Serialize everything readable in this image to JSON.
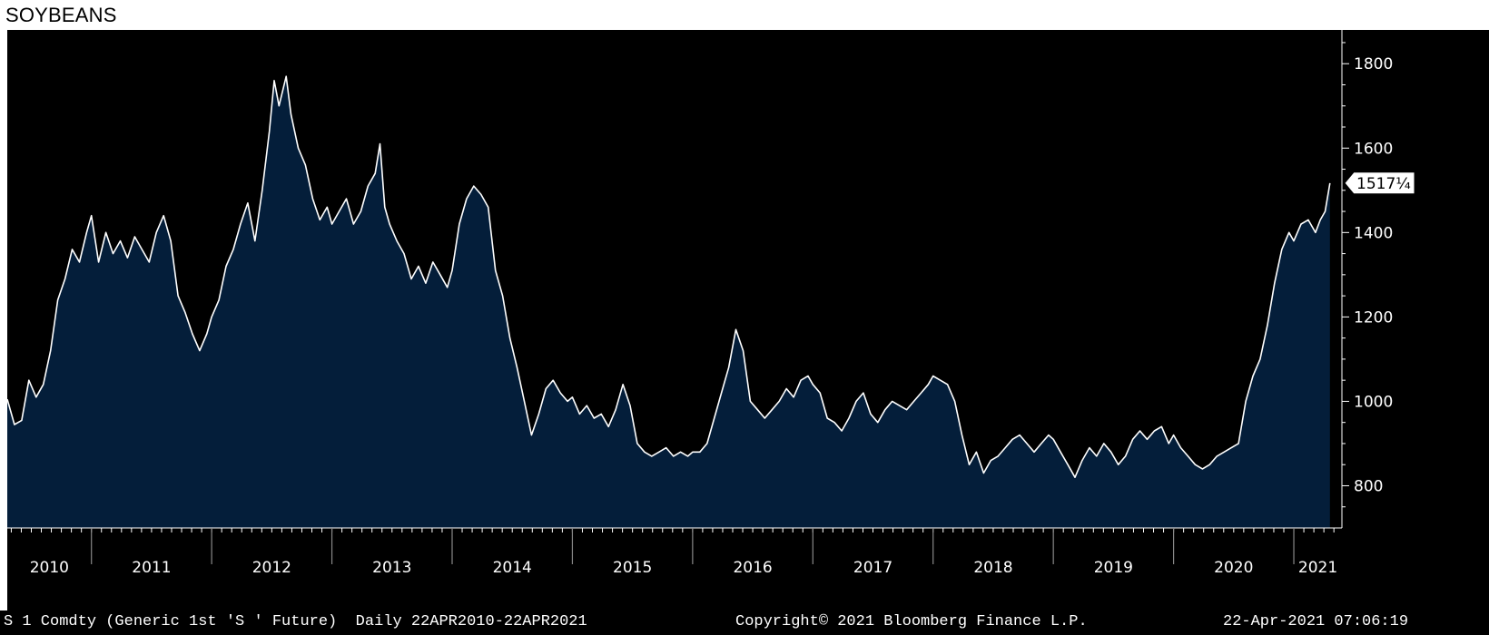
{
  "title": "SOYBEANS",
  "footer": {
    "left": "S 1 Comdty (Generic 1st 'S ' Future)  Daily 22APR2010-22APR2021",
    "center": "Copyright© 2021 Bloomberg Finance L.P.",
    "right": "22-Apr-2021 07:06:19"
  },
  "colors": {
    "background": "#000000",
    "area_fill": "#041e3a",
    "line": "#ffffff",
    "axis": "#ffffff",
    "text": "#ffffff"
  },
  "chart_data": {
    "type": "area",
    "title": "SOYBEANS",
    "xlabel": "",
    "ylabel": "",
    "ylim": [
      700,
      1880
    ],
    "xlim": [
      2010.3,
      2021.4
    ],
    "grid": false,
    "y_ticks": [
      800,
      1000,
      1200,
      1400,
      1600,
      1800
    ],
    "x_ticks": [
      "2010",
      "2011",
      "2012",
      "2013",
      "2014",
      "2015",
      "2016",
      "2017",
      "2018",
      "2019",
      "2020",
      "2021"
    ],
    "last_value_label": "1517¼",
    "last_value": 1517.25,
    "series": [
      {
        "values": [
          [
            2010.3,
            1005
          ],
          [
            2010.36,
            945
          ],
          [
            2010.42,
            955
          ],
          [
            2010.48,
            1050
          ],
          [
            2010.54,
            1010
          ],
          [
            2010.6,
            1040
          ],
          [
            2010.66,
            1120
          ],
          [
            2010.72,
            1240
          ],
          [
            2010.78,
            1290
          ],
          [
            2010.84,
            1360
          ],
          [
            2010.9,
            1330
          ],
          [
            2010.96,
            1400
          ],
          [
            2011.0,
            1440
          ],
          [
            2011.06,
            1330
          ],
          [
            2011.12,
            1400
          ],
          [
            2011.18,
            1350
          ],
          [
            2011.24,
            1380
          ],
          [
            2011.3,
            1340
          ],
          [
            2011.36,
            1390
          ],
          [
            2011.42,
            1360
          ],
          [
            2011.48,
            1330
          ],
          [
            2011.54,
            1400
          ],
          [
            2011.6,
            1440
          ],
          [
            2011.66,
            1380
          ],
          [
            2011.72,
            1250
          ],
          [
            2011.78,
            1210
          ],
          [
            2011.84,
            1160
          ],
          [
            2011.9,
            1120
          ],
          [
            2011.96,
            1160
          ],
          [
            2012.0,
            1200
          ],
          [
            2012.06,
            1240
          ],
          [
            2012.12,
            1320
          ],
          [
            2012.18,
            1360
          ],
          [
            2012.24,
            1420
          ],
          [
            2012.3,
            1470
          ],
          [
            2012.36,
            1380
          ],
          [
            2012.42,
            1500
          ],
          [
            2012.48,
            1640
          ],
          [
            2012.52,
            1760
          ],
          [
            2012.56,
            1700
          ],
          [
            2012.62,
            1770
          ],
          [
            2012.66,
            1680
          ],
          [
            2012.72,
            1600
          ],
          [
            2012.78,
            1560
          ],
          [
            2012.84,
            1480
          ],
          [
            2012.9,
            1430
          ],
          [
            2012.96,
            1460
          ],
          [
            2013.0,
            1420
          ],
          [
            2013.06,
            1450
          ],
          [
            2013.12,
            1480
          ],
          [
            2013.18,
            1420
          ],
          [
            2013.24,
            1450
          ],
          [
            2013.3,
            1510
          ],
          [
            2013.36,
            1540
          ],
          [
            2013.4,
            1610
          ],
          [
            2013.44,
            1460
          ],
          [
            2013.48,
            1420
          ],
          [
            2013.54,
            1380
          ],
          [
            2013.6,
            1350
          ],
          [
            2013.66,
            1290
          ],
          [
            2013.72,
            1320
          ],
          [
            2013.78,
            1280
          ],
          [
            2013.84,
            1330
          ],
          [
            2013.9,
            1300
          ],
          [
            2013.96,
            1270
          ],
          [
            2014.0,
            1310
          ],
          [
            2014.06,
            1420
          ],
          [
            2014.12,
            1480
          ],
          [
            2014.18,
            1510
          ],
          [
            2014.24,
            1490
          ],
          [
            2014.3,
            1460
          ],
          [
            2014.36,
            1310
          ],
          [
            2014.42,
            1250
          ],
          [
            2014.48,
            1150
          ],
          [
            2014.54,
            1080
          ],
          [
            2014.6,
            1000
          ],
          [
            2014.66,
            920
          ],
          [
            2014.72,
            970
          ],
          [
            2014.78,
            1030
          ],
          [
            2014.84,
            1050
          ],
          [
            2014.9,
            1020
          ],
          [
            2014.96,
            1000
          ],
          [
            2015.0,
            1010
          ],
          [
            2015.06,
            970
          ],
          [
            2015.12,
            990
          ],
          [
            2015.18,
            960
          ],
          [
            2015.24,
            970
          ],
          [
            2015.3,
            940
          ],
          [
            2015.36,
            980
          ],
          [
            2015.42,
            1040
          ],
          [
            2015.48,
            990
          ],
          [
            2015.54,
            900
          ],
          [
            2015.6,
            880
          ],
          [
            2015.66,
            870
          ],
          [
            2015.72,
            880
          ],
          [
            2015.78,
            890
          ],
          [
            2015.84,
            870
          ],
          [
            2015.9,
            880
          ],
          [
            2015.96,
            870
          ],
          [
            2016.0,
            880
          ],
          [
            2016.06,
            880
          ],
          [
            2016.12,
            900
          ],
          [
            2016.18,
            960
          ],
          [
            2016.24,
            1020
          ],
          [
            2016.3,
            1080
          ],
          [
            2016.36,
            1170
          ],
          [
            2016.42,
            1120
          ],
          [
            2016.48,
            1000
          ],
          [
            2016.54,
            980
          ],
          [
            2016.6,
            960
          ],
          [
            2016.66,
            980
          ],
          [
            2016.72,
            1000
          ],
          [
            2016.78,
            1030
          ],
          [
            2016.84,
            1010
          ],
          [
            2016.9,
            1050
          ],
          [
            2016.96,
            1060
          ],
          [
            2017.0,
            1040
          ],
          [
            2017.06,
            1020
          ],
          [
            2017.12,
            960
          ],
          [
            2017.18,
            950
          ],
          [
            2017.24,
            930
          ],
          [
            2017.3,
            960
          ],
          [
            2017.36,
            1000
          ],
          [
            2017.42,
            1020
          ],
          [
            2017.48,
            970
          ],
          [
            2017.54,
            950
          ],
          [
            2017.6,
            980
          ],
          [
            2017.66,
            1000
          ],
          [
            2017.72,
            990
          ],
          [
            2017.78,
            980
          ],
          [
            2017.84,
            1000
          ],
          [
            2017.9,
            1020
          ],
          [
            2017.96,
            1040
          ],
          [
            2018.0,
            1060
          ],
          [
            2018.06,
            1050
          ],
          [
            2018.12,
            1040
          ],
          [
            2018.18,
            1000
          ],
          [
            2018.24,
            920
          ],
          [
            2018.3,
            850
          ],
          [
            2018.36,
            880
          ],
          [
            2018.42,
            830
          ],
          [
            2018.48,
            860
          ],
          [
            2018.54,
            870
          ],
          [
            2018.6,
            890
          ],
          [
            2018.66,
            910
          ],
          [
            2018.72,
            920
          ],
          [
            2018.78,
            900
          ],
          [
            2018.84,
            880
          ],
          [
            2018.9,
            900
          ],
          [
            2018.96,
            920
          ],
          [
            2019.0,
            910
          ],
          [
            2019.06,
            880
          ],
          [
            2019.12,
            850
          ],
          [
            2019.18,
            820
          ],
          [
            2019.24,
            860
          ],
          [
            2019.3,
            890
          ],
          [
            2019.36,
            870
          ],
          [
            2019.42,
            900
          ],
          [
            2019.48,
            880
          ],
          [
            2019.54,
            850
          ],
          [
            2019.6,
            870
          ],
          [
            2019.66,
            910
          ],
          [
            2019.72,
            930
          ],
          [
            2019.78,
            910
          ],
          [
            2019.84,
            930
          ],
          [
            2019.9,
            940
          ],
          [
            2019.96,
            900
          ],
          [
            2020.0,
            920
          ],
          [
            2020.06,
            890
          ],
          [
            2020.12,
            870
          ],
          [
            2020.18,
            850
          ],
          [
            2020.24,
            840
          ],
          [
            2020.3,
            850
          ],
          [
            2020.36,
            870
          ],
          [
            2020.42,
            880
          ],
          [
            2020.48,
            890
          ],
          [
            2020.54,
            900
          ],
          [
            2020.6,
            1000
          ],
          [
            2020.66,
            1060
          ],
          [
            2020.72,
            1100
          ],
          [
            2020.78,
            1180
          ],
          [
            2020.84,
            1280
          ],
          [
            2020.9,
            1360
          ],
          [
            2020.96,
            1400
          ],
          [
            2021.0,
            1380
          ],
          [
            2021.06,
            1420
          ],
          [
            2021.12,
            1430
          ],
          [
            2021.18,
            1400
          ],
          [
            2021.22,
            1430
          ],
          [
            2021.26,
            1450
          ],
          [
            2021.3,
            1517
          ]
        ]
      }
    ]
  }
}
